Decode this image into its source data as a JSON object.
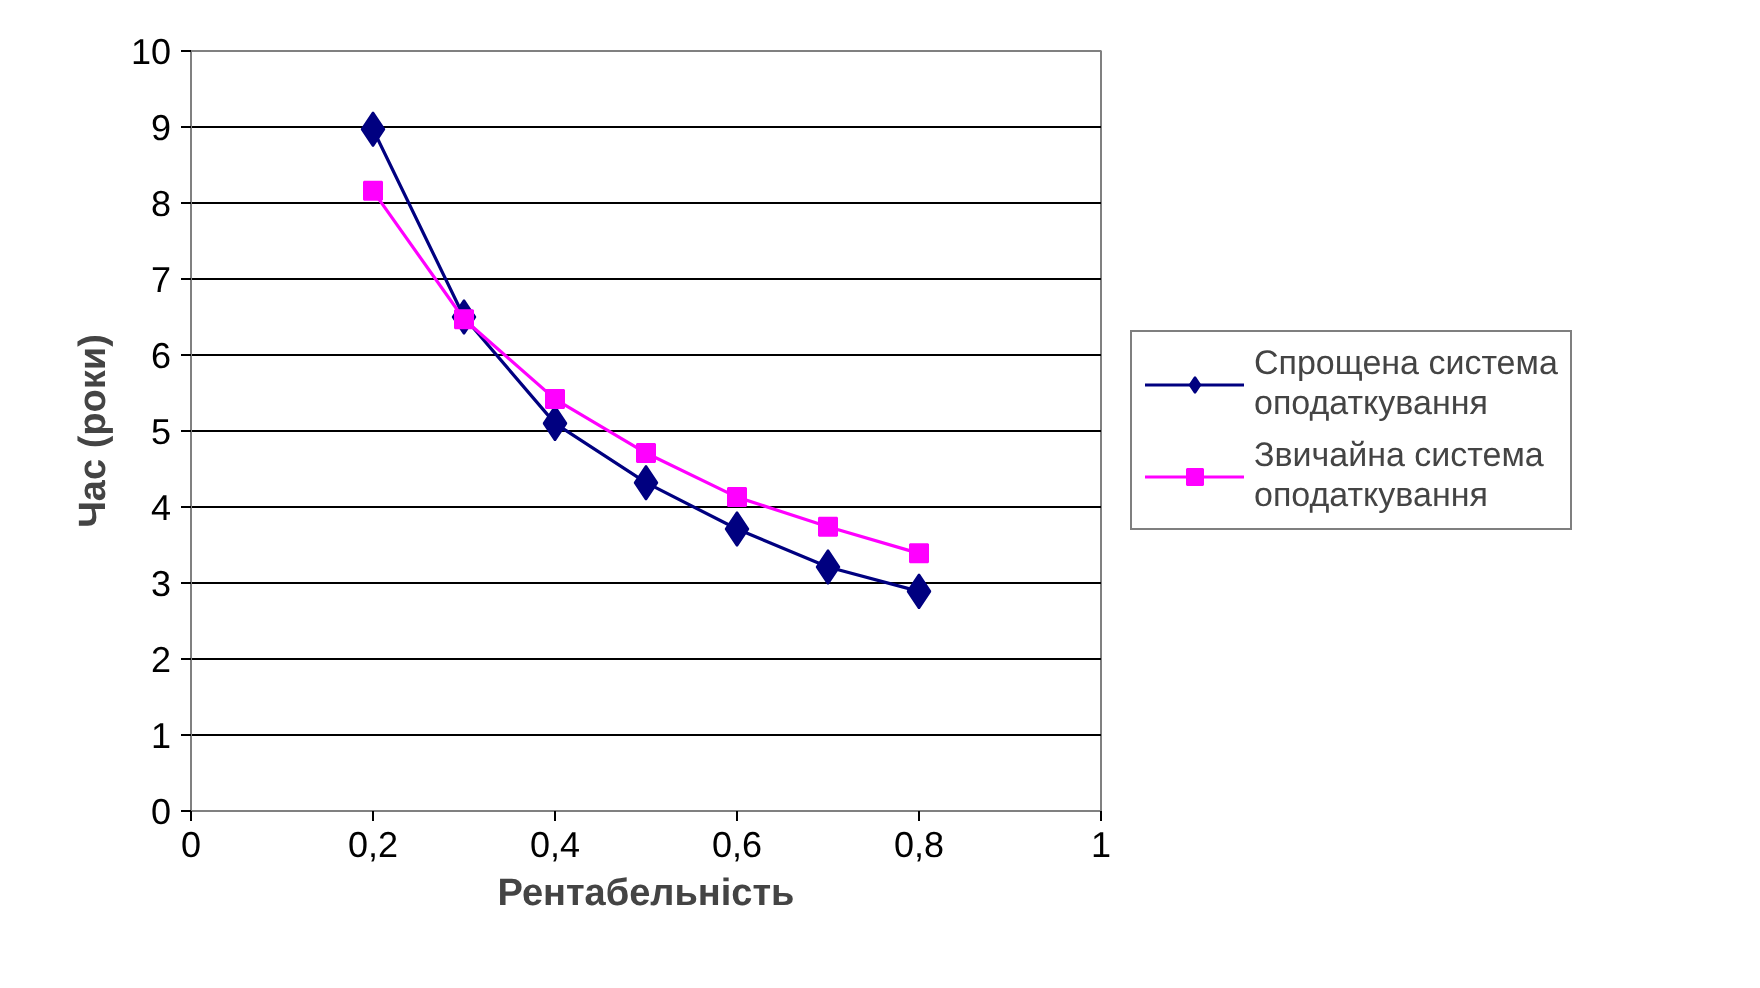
{
  "chart_data": {
    "type": "line",
    "xlabel": "Рентабельність",
    "ylabel": "Час (роки)",
    "x": [
      0.2,
      0.3,
      0.4,
      0.5,
      0.6,
      0.7,
      0.8
    ],
    "series": [
      {
        "name": "Спрощена система оподаткування",
        "color": "#000080",
        "marker": "diamond",
        "values": [
          8.97,
          6.5,
          5.1,
          4.32,
          3.71,
          3.21,
          2.89
        ]
      },
      {
        "name": "Звичайна система оподаткування",
        "color": "#ff00ff",
        "marker": "square",
        "values": [
          8.16,
          6.47,
          5.42,
          4.71,
          4.13,
          3.74,
          3.39
        ]
      }
    ],
    "xlim": [
      0,
      1
    ],
    "ylim": [
      0,
      10
    ],
    "xticks": [
      0,
      {
        "value": 0.2,
        "label": "0,2"
      },
      {
        "value": 0.4,
        "label": "0,4"
      },
      {
        "value": 0.6,
        "label": "0,6"
      },
      {
        "value": 0.8,
        "label": "0,8"
      },
      1
    ],
    "yticks": [
      0,
      1,
      2,
      3,
      4,
      5,
      6,
      7,
      8,
      9,
      10
    ],
    "grid": "y",
    "legend": "right",
    "line_style": "solid"
  }
}
